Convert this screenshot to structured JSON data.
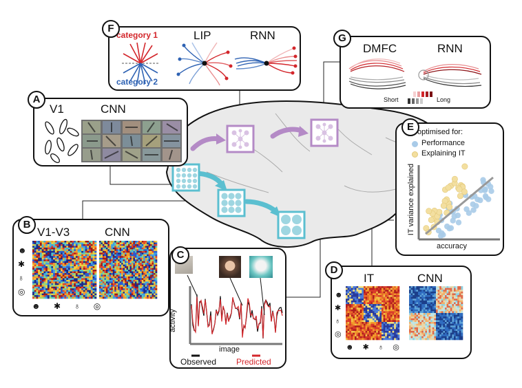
{
  "panels": {
    "A": {
      "badge": "A",
      "left_title": "V1",
      "right_title": "CNN"
    },
    "B": {
      "badge": "B",
      "left_title": "V1-V3",
      "right_title": "CNN"
    },
    "C": {
      "badge": "C",
      "ylabel": "activity",
      "xlabel": "image",
      "legend_observed": "Observed",
      "legend_predicted": "Predicted"
    },
    "D": {
      "badge": "D",
      "left_title": "IT",
      "right_title": "CNN"
    },
    "E": {
      "badge": "E",
      "legend_title": "optimised for:",
      "legend_items": [
        "Performance",
        "Explaining IT"
      ],
      "ylabel": "IT variance explained",
      "xlabel": "accuracy"
    },
    "F": {
      "badge": "F",
      "cat1": "category 1",
      "cat2": "category 2",
      "mid_title": "LIP",
      "right_title": "RNN"
    },
    "G": {
      "badge": "G",
      "left_title": "DMFC",
      "right_title": "RNN",
      "short_label": "Short",
      "long_label": "Long"
    }
  },
  "colors": {
    "red": "#d3262b",
    "blue": "#2e62b3",
    "teal": "#5bbfd0",
    "purple": "#b48ac6",
    "brain_fill": "#eaeaea",
    "perf_dot": "#a9cbe8",
    "explain_dot": "#f3dfa0",
    "fit_line": "#999999"
  },
  "icons": [
    "face-icon",
    "plant-icon",
    "shoes-icon",
    "ball-icon"
  ]
}
